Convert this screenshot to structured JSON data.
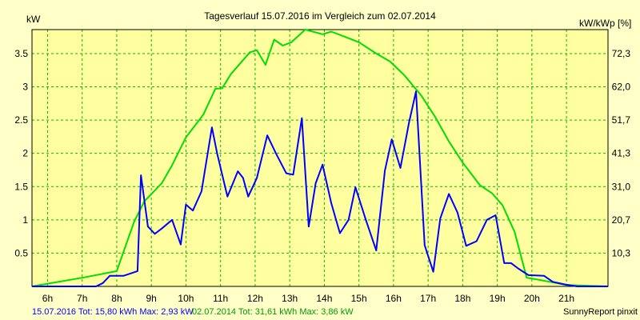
{
  "chart_data": {
    "type": "line",
    "title": "Tagesverlauf 15.07.2016 im Vergleich zum 02.07.2014",
    "ylabel_left": "kW",
    "ylabel_right": "kW/kWp [%]",
    "xlim": [
      5.55,
      22.2
    ],
    "ylim": [
      0,
      3.86
    ],
    "x_ticks": [
      {
        "x": 6,
        "label": "6h"
      },
      {
        "x": 7,
        "label": "7h"
      },
      {
        "x": 8,
        "label": "8h"
      },
      {
        "x": 9,
        "label": "9h"
      },
      {
        "x": 10,
        "label": "10h"
      },
      {
        "x": 11,
        "label": "11h"
      },
      {
        "x": 12,
        "label": "12h"
      },
      {
        "x": 13,
        "label": "13h"
      },
      {
        "x": 14,
        "label": "14h"
      },
      {
        "x": 15,
        "label": "15h"
      },
      {
        "x": 16,
        "label": "16h"
      },
      {
        "x": 17,
        "label": "17h"
      },
      {
        "x": 18,
        "label": "18h"
      },
      {
        "x": 19,
        "label": "19h"
      },
      {
        "x": 20,
        "label": "20h"
      },
      {
        "x": 21,
        "label": "21h"
      }
    ],
    "y_ticks_left": [
      {
        "y": 0.5,
        "label": "0.5"
      },
      {
        "y": 1,
        "label": "1"
      },
      {
        "y": 1.5,
        "label": "1.5"
      },
      {
        "y": 2,
        "label": "2"
      },
      {
        "y": 2.5,
        "label": "2.5"
      },
      {
        "y": 3,
        "label": "3"
      },
      {
        "y": 3.5,
        "label": "3.5"
      }
    ],
    "y_ticks_right": [
      {
        "y": 0.5,
        "label": "10,3"
      },
      {
        "y": 1,
        "label": "20,7"
      },
      {
        "y": 1.5,
        "label": "31,0"
      },
      {
        "y": 2,
        "label": "41,3"
      },
      {
        "y": 2.5,
        "label": "51,7"
      },
      {
        "y": 3,
        "label": "62,0"
      },
      {
        "y": 3.5,
        "label": "72,3"
      }
    ],
    "grid": true,
    "series": [
      {
        "name": "15.07.2016",
        "color": "#0000ff",
        "x": [
          5.55,
          7.4,
          7.6,
          7.8,
          8.2,
          8.6,
          8.7,
          8.9,
          9.1,
          9.3,
          9.6,
          9.85,
          10.0,
          10.2,
          10.45,
          10.75,
          10.9,
          11.2,
          11.5,
          11.65,
          11.8,
          12.05,
          12.35,
          12.6,
          12.9,
          13.1,
          13.35,
          13.55,
          13.75,
          13.95,
          14.2,
          14.45,
          14.7,
          14.9,
          15.2,
          15.5,
          15.75,
          15.95,
          16.2,
          16.45,
          16.65,
          16.9,
          17.15,
          17.35,
          17.6,
          17.85,
          18.1,
          18.4,
          18.7,
          18.95,
          19.2,
          19.4,
          19.6,
          19.9,
          20.35,
          20.6,
          20.95,
          21.3,
          22.2
        ],
        "values": [
          0,
          0,
          0.05,
          0.16,
          0.16,
          0.23,
          1.67,
          0.9,
          0.79,
          0.87,
          1.0,
          0.63,
          1.23,
          1.14,
          1.43,
          2.39,
          2.0,
          1.35,
          1.73,
          1.63,
          1.35,
          1.63,
          2.27,
          2.0,
          1.7,
          1.68,
          2.53,
          0.9,
          1.55,
          1.83,
          1.25,
          0.8,
          1.0,
          1.49,
          1.0,
          0.54,
          1.74,
          2.21,
          1.78,
          2.47,
          2.93,
          0.62,
          0.22,
          1.02,
          1.39,
          1.11,
          0.61,
          0.68,
          1.0,
          1.07,
          0.35,
          0.35,
          0.27,
          0.17,
          0.16,
          0.07,
          0.03,
          0,
          0
        ]
      },
      {
        "name": "02.07.2014",
        "color": "#00dd00",
        "x": [
          5.55,
          7.0,
          8.0,
          8.5,
          8.8,
          9.3,
          9.6,
          10.0,
          10.5,
          10.85,
          11.05,
          11.3,
          11.6,
          11.85,
          12.05,
          12.3,
          12.55,
          12.8,
          13.05,
          13.45,
          13.95,
          14.2,
          14.6,
          15.0,
          15.5,
          15.9,
          16.3,
          16.8,
          17.2,
          17.6,
          18.0,
          18.5,
          18.85,
          19.15,
          19.5,
          19.85,
          20.2,
          21.0,
          22.2
        ],
        "values": [
          0,
          0.13,
          0.23,
          0.97,
          1.28,
          1.55,
          1.82,
          2.24,
          2.58,
          2.97,
          2.98,
          3.19,
          3.37,
          3.52,
          3.55,
          3.33,
          3.71,
          3.62,
          3.67,
          3.86,
          3.79,
          3.83,
          3.75,
          3.67,
          3.5,
          3.38,
          3.18,
          2.87,
          2.55,
          2.18,
          1.86,
          1.52,
          1.4,
          1.22,
          0.82,
          0.13,
          0.1,
          0.02,
          0
        ]
      }
    ],
    "footer_left": "15.07.2016 Tot: 15,80 kWh Max: 2,93 kW",
    "footer_mid": "02.07.2014 Tot: 31,61 kWh Max: 3,86 kW",
    "footer_right": "SunnyReport pinxit"
  }
}
